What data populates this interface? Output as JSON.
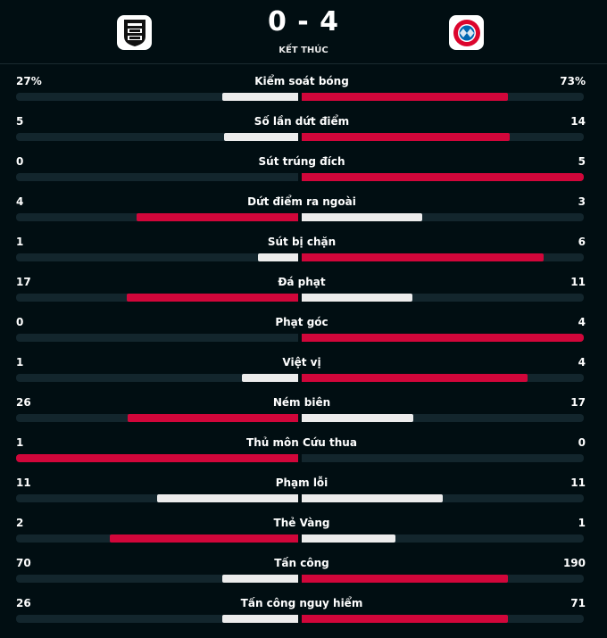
{
  "match": {
    "score": "0 - 4",
    "status": "KẾT THÚC",
    "home_logo_icon": "ssv-ulm-1846-crest-icon",
    "away_logo_icon": "fc-bayern-munchen-crest-icon"
  },
  "colors": {
    "background": "#010e12",
    "track": "#13262d",
    "leader_bar": "#d1063a",
    "trailing_bar": "#ececec"
  },
  "stats": [
    {
      "label": "Kiểm soát bóng",
      "home": "27%",
      "away": "73%",
      "home_value": 27,
      "away_value": 73
    },
    {
      "label": "Số lần dứt điểm",
      "home": "5",
      "away": "14",
      "home_value": 5,
      "away_value": 14
    },
    {
      "label": "Sút trúng đích",
      "home": "0",
      "away": "5",
      "home_value": 0,
      "away_value": 5
    },
    {
      "label": "Dứt điểm ra ngoài",
      "home": "4",
      "away": "3",
      "home_value": 4,
      "away_value": 3
    },
    {
      "label": "Sút bị chặn",
      "home": "1",
      "away": "6",
      "home_value": 1,
      "away_value": 6
    },
    {
      "label": "Đá phạt",
      "home": "17",
      "away": "11",
      "home_value": 17,
      "away_value": 11
    },
    {
      "label": "Phạt góc",
      "home": "0",
      "away": "4",
      "home_value": 0,
      "away_value": 4
    },
    {
      "label": "Việt vị",
      "home": "1",
      "away": "4",
      "home_value": 1,
      "away_value": 4
    },
    {
      "label": "Ném biên",
      "home": "26",
      "away": "17",
      "home_value": 26,
      "away_value": 17
    },
    {
      "label": "Thủ môn Cứu thua",
      "home": "1",
      "away": "0",
      "home_value": 1,
      "away_value": 0
    },
    {
      "label": "Phạm lỗi",
      "home": "11",
      "away": "11",
      "home_value": 11,
      "away_value": 11
    },
    {
      "label": "Thẻ Vàng",
      "home": "2",
      "away": "1",
      "home_value": 2,
      "away_value": 1
    },
    {
      "label": "Tấn công",
      "home": "70",
      "away": "190",
      "home_value": 70,
      "away_value": 190
    },
    {
      "label": "Tấn công nguy hiểm",
      "home": "26",
      "away": "71",
      "home_value": 26,
      "away_value": 71
    }
  ]
}
